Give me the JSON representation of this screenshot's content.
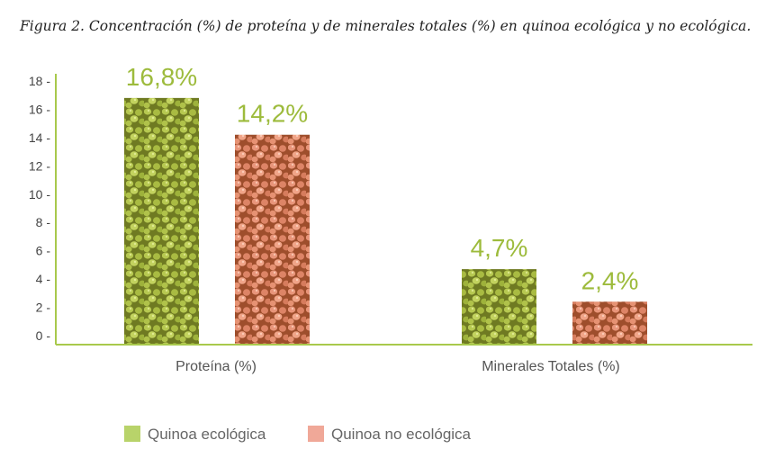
{
  "chart_data": {
    "type": "bar",
    "title": "Figura 2. Concentración (%) de proteína y de minerales totales (%) en quinoa ecológica y no ecológica.",
    "categories": [
      "Proteína (%)",
      "Minerales Totales (%)"
    ],
    "series": [
      {
        "name": "Quinoa ecológica",
        "values": [
          16.8,
          4.7
        ],
        "labels": [
          "16,8%",
          "4,7%"
        ],
        "color": "#a8bf3f"
      },
      {
        "name": "Quinoa no ecológica",
        "values": [
          14.2,
          2.4
        ],
        "labels": [
          "14,2%",
          "2,4%"
        ],
        "color": "#e8957a"
      }
    ],
    "yticks": [
      0,
      2,
      4,
      6,
      8,
      10,
      12,
      14,
      16,
      18
    ],
    "ytick_labels": [
      "0 -",
      "2 -",
      "4 -",
      "6 -",
      "8 -",
      "10 -",
      "12 -",
      "14 -",
      "16 -",
      "18 -"
    ],
    "ylim": [
      0,
      19
    ],
    "legend_position": "bottom-left",
    "axis_color": "#a8c94c",
    "label_color": "#9dbb3c"
  }
}
